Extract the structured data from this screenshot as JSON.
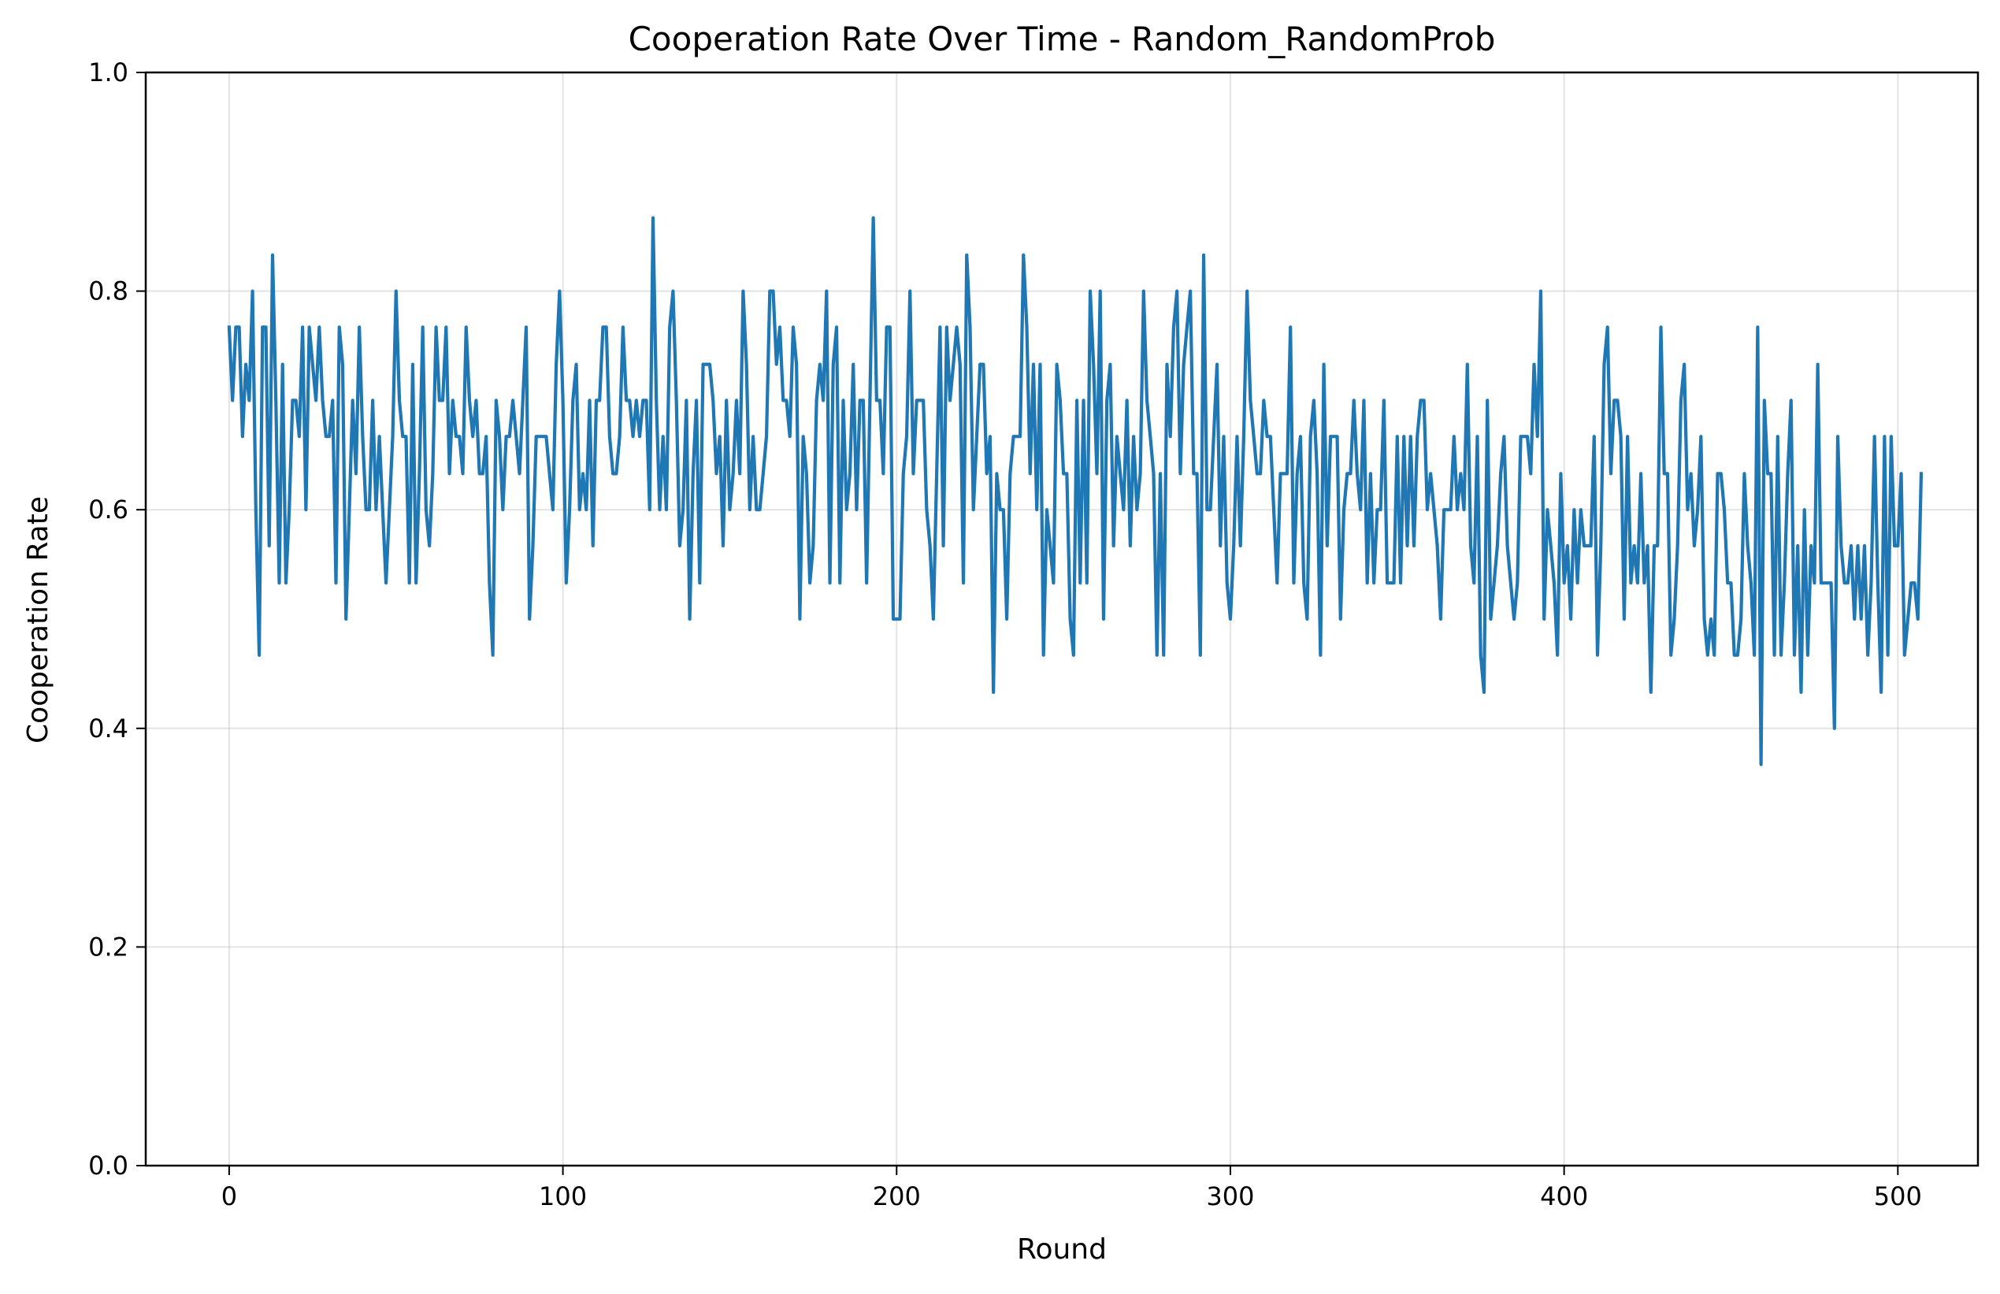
{
  "chart_data": {
    "type": "line",
    "title": "Cooperation Rate Over Time - Random_RandomProb",
    "xlabel": "Round",
    "ylabel": "Cooperation Rate",
    "xlim": [
      -25,
      524
    ],
    "ylim": [
      0.0,
      1.0
    ],
    "xticks": [
      0,
      100,
      200,
      300,
      400,
      500
    ],
    "xtick_labels": [
      "0",
      "100",
      "200",
      "300",
      "400",
      "500"
    ],
    "yticks": [
      0.0,
      0.2,
      0.4,
      0.6,
      0.8,
      1.0
    ],
    "ytick_labels": [
      "0.0",
      "0.2",
      "0.4",
      "0.6",
      "0.8",
      "1.0"
    ],
    "grid": true,
    "legend": "none",
    "series": [
      {
        "color": "#1f77b4",
        "x_start": 0,
        "x_step": 1,
        "y": [
          0.767,
          0.7,
          0.767,
          0.767,
          0.667,
          0.733,
          0.7,
          0.8,
          0.6,
          0.467,
          0.767,
          0.767,
          0.567,
          0.833,
          0.7,
          0.533,
          0.733,
          0.533,
          0.6,
          0.7,
          0.7,
          0.667,
          0.767,
          0.6,
          0.767,
          0.733,
          0.7,
          0.767,
          0.7,
          0.667,
          0.667,
          0.7,
          0.533,
          0.767,
          0.733,
          0.5,
          0.6,
          0.7,
          0.633,
          0.767,
          0.667,
          0.6,
          0.6,
          0.7,
          0.6,
          0.667,
          0.6,
          0.533,
          0.6,
          0.667,
          0.8,
          0.7,
          0.667,
          0.667,
          0.533,
          0.733,
          0.533,
          0.633,
          0.767,
          0.6,
          0.567,
          0.633,
          0.767,
          0.7,
          0.7,
          0.767,
          0.633,
          0.7,
          0.667,
          0.667,
          0.633,
          0.767,
          0.7,
          0.667,
          0.7,
          0.633,
          0.633,
          0.667,
          0.533,
          0.467,
          0.7,
          0.667,
          0.6,
          0.667,
          0.667,
          0.7,
          0.667,
          0.633,
          0.7,
          0.767,
          0.5,
          0.567,
          0.667,
          0.667,
          0.667,
          0.667,
          0.633,
          0.6,
          0.733,
          0.8,
          0.7,
          0.533,
          0.6,
          0.7,
          0.733,
          0.6,
          0.633,
          0.6,
          0.7,
          0.567,
          0.7,
          0.7,
          0.767,
          0.767,
          0.667,
          0.633,
          0.633,
          0.667,
          0.767,
          0.7,
          0.7,
          0.667,
          0.7,
          0.667,
          0.7,
          0.7,
          0.6,
          0.867,
          0.7,
          0.6,
          0.667,
          0.6,
          0.767,
          0.8,
          0.7,
          0.567,
          0.6,
          0.7,
          0.5,
          0.633,
          0.7,
          0.533,
          0.733,
          0.733,
          0.733,
          0.7,
          0.633,
          0.667,
          0.567,
          0.7,
          0.6,
          0.633,
          0.7,
          0.633,
          0.8,
          0.733,
          0.6,
          0.667,
          0.6,
          0.6,
          0.633,
          0.667,
          0.8,
          0.8,
          0.733,
          0.767,
          0.7,
          0.7,
          0.667,
          0.767,
          0.733,
          0.5,
          0.667,
          0.633,
          0.533,
          0.567,
          0.7,
          0.733,
          0.7,
          0.8,
          0.533,
          0.733,
          0.767,
          0.533,
          0.7,
          0.6,
          0.633,
          0.733,
          0.6,
          0.7,
          0.7,
          0.533,
          0.7,
          0.867,
          0.7,
          0.7,
          0.633,
          0.767,
          0.767,
          0.5,
          0.5,
          0.5,
          0.633,
          0.667,
          0.8,
          0.633,
          0.7,
          0.7,
          0.7,
          0.6,
          0.567,
          0.5,
          0.633,
          0.767,
          0.567,
          0.767,
          0.7,
          0.733,
          0.767,
          0.733,
          0.533,
          0.833,
          0.767,
          0.6,
          0.667,
          0.733,
          0.733,
          0.633,
          0.667,
          0.433,
          0.633,
          0.6,
          0.6,
          0.5,
          0.633,
          0.667,
          0.667,
          0.667,
          0.833,
          0.767,
          0.633,
          0.733,
          0.6,
          0.733,
          0.467,
          0.6,
          0.567,
          0.533,
          0.733,
          0.7,
          0.633,
          0.633,
          0.5,
          0.467,
          0.7,
          0.533,
          0.7,
          0.533,
          0.8,
          0.733,
          0.633,
          0.8,
          0.5,
          0.7,
          0.733,
          0.567,
          0.667,
          0.633,
          0.6,
          0.7,
          0.567,
          0.667,
          0.6,
          0.633,
          0.8,
          0.7,
          0.667,
          0.633,
          0.467,
          0.633,
          0.467,
          0.733,
          0.667,
          0.767,
          0.8,
          0.633,
          0.733,
          0.767,
          0.8,
          0.633,
          0.633,
          0.467,
          0.833,
          0.6,
          0.6,
          0.667,
          0.733,
          0.567,
          0.667,
          0.533,
          0.5,
          0.567,
          0.667,
          0.567,
          0.667,
          0.8,
          0.7,
          0.667,
          0.633,
          0.633,
          0.7,
          0.667,
          0.667,
          0.6,
          0.533,
          0.633,
          0.633,
          0.633,
          0.767,
          0.533,
          0.633,
          0.667,
          0.533,
          0.5,
          0.667,
          0.7,
          0.633,
          0.467,
          0.733,
          0.567,
          0.667,
          0.667,
          0.667,
          0.5,
          0.6,
          0.633,
          0.633,
          0.7,
          0.633,
          0.6,
          0.7,
          0.533,
          0.633,
          0.533,
          0.6,
          0.6,
          0.7,
          0.533,
          0.533,
          0.533,
          0.667,
          0.533,
          0.667,
          0.567,
          0.667,
          0.567,
          0.667,
          0.7,
          0.7,
          0.6,
          0.633,
          0.6,
          0.567,
          0.5,
          0.6,
          0.6,
          0.6,
          0.667,
          0.6,
          0.633,
          0.6,
          0.733,
          0.567,
          0.533,
          0.667,
          0.467,
          0.433,
          0.7,
          0.5,
          0.533,
          0.567,
          0.633,
          0.667,
          0.567,
          0.533,
          0.5,
          0.533,
          0.667,
          0.667,
          0.667,
          0.633,
          0.733,
          0.667,
          0.8,
          0.5,
          0.6,
          0.567,
          0.533,
          0.467,
          0.633,
          0.533,
          0.567,
          0.5,
          0.6,
          0.533,
          0.6,
          0.567,
          0.567,
          0.567,
          0.667,
          0.467,
          0.567,
          0.733,
          0.767,
          0.633,
          0.7,
          0.7,
          0.667,
          0.5,
          0.667,
          0.533,
          0.567,
          0.533,
          0.633,
          0.533,
          0.567,
          0.433,
          0.567,
          0.567,
          0.767,
          0.633,
          0.633,
          0.467,
          0.5,
          0.567,
          0.7,
          0.733,
          0.6,
          0.633,
          0.567,
          0.6,
          0.667,
          0.5,
          0.467,
          0.5,
          0.467,
          0.633,
          0.633,
          0.6,
          0.533,
          0.533,
          0.467,
          0.467,
          0.5,
          0.633,
          0.567,
          0.533,
          0.467,
          0.767,
          0.367,
          0.7,
          0.633,
          0.633,
          0.467,
          0.667,
          0.467,
          0.533,
          0.633,
          0.7,
          0.467,
          0.567,
          0.433,
          0.6,
          0.467,
          0.567,
          0.533,
          0.733,
          0.533,
          0.533,
          0.533,
          0.533,
          0.4,
          0.667,
          0.567,
          0.533,
          0.533,
          0.567,
          0.5,
          0.567,
          0.5,
          0.567,
          0.467,
          0.533,
          0.667,
          0.533,
          0.433,
          0.667,
          0.467,
          0.667,
          0.567,
          0.567,
          0.633,
          0.467,
          0.5,
          0.533,
          0.533,
          0.5,
          0.633
        ]
      }
    ]
  }
}
